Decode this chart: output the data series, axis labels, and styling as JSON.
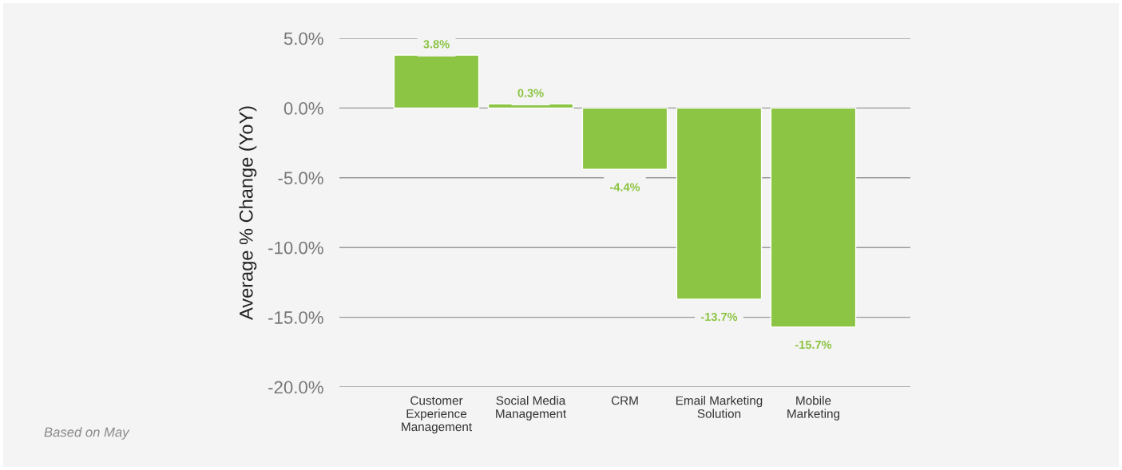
{
  "chart_data": {
    "type": "bar",
    "ylabel": "Average % Change (YoY)",
    "categories": [
      "Customer\nExperience\nManagement",
      "Social Media\nManagement",
      "CRM",
      "Email Marketing\nSolution",
      "Mobile\nMarketing"
    ],
    "values": [
      3.8,
      0.3,
      -4.4,
      -13.7,
      -15.7
    ],
    "value_labels": [
      "3.8%",
      "0.3%",
      "-4.4%",
      "-13.7%",
      "-15.7%"
    ],
    "color": "#8cc443",
    "ylim": [
      -20,
      5
    ],
    "yticks": [
      {
        "value": 5,
        "label": "5.0%"
      },
      {
        "value": 0,
        "label": "0.0%"
      },
      {
        "value": -5,
        "label": "-5.0%"
      },
      {
        "value": -10,
        "label": "-10.0%"
      },
      {
        "value": -15,
        "label": "-15.0%"
      },
      {
        "value": -20,
        "label": "-20.0%"
      }
    ],
    "grid": "y",
    "legend": false,
    "annotations": [
      "Based on May"
    ]
  }
}
